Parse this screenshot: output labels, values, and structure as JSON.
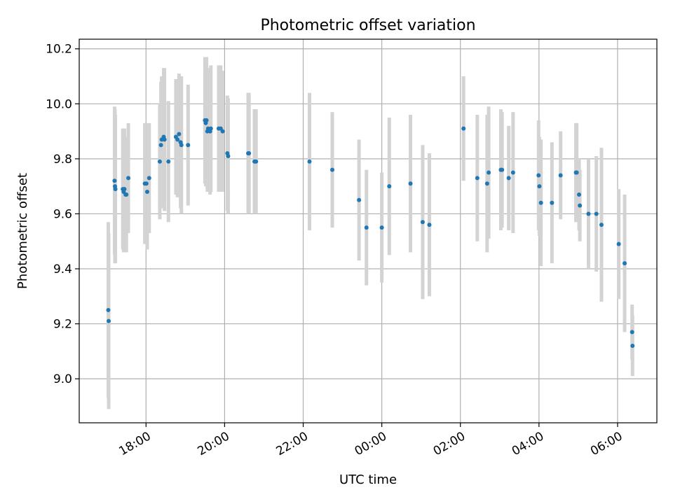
{
  "chart_data": {
    "type": "scatter",
    "title": "Photometric offset variation",
    "xlabel": "UTC time",
    "ylabel": "Photometric offset",
    "x_unit": "hours since 00:00 UTC",
    "xlim": [
      -7.7,
      7.0
    ],
    "ylim": [
      8.84,
      10.235
    ],
    "grid": true,
    "x_ticks": [
      {
        "value": -6,
        "label": "18:00"
      },
      {
        "value": -4,
        "label": "20:00"
      },
      {
        "value": -2,
        "label": "22:00"
      },
      {
        "value": 0,
        "label": "00:00"
      },
      {
        "value": 2,
        "label": "02:00"
      },
      {
        "value": 4,
        "label": "04:00"
      },
      {
        "value": 6,
        "label": "06:00"
      }
    ],
    "y_ticks": [
      {
        "value": 9.0,
        "label": "9.0"
      },
      {
        "value": 9.2,
        "label": "9.2"
      },
      {
        "value": 9.4,
        "label": "9.4"
      },
      {
        "value": 9.6,
        "label": "9.6"
      },
      {
        "value": 9.8,
        "label": "9.8"
      },
      {
        "value": 10.0,
        "label": "10.0"
      },
      {
        "value": 10.2,
        "label": "10.2"
      }
    ],
    "colors": {
      "points": "#1f77b4",
      "errorbars": "#d3d3d3",
      "grid": "#b0b0b0"
    },
    "series": [
      {
        "name": "Photometric offset",
        "x": [
          -6.96,
          -6.95,
          -6.8,
          -6.79,
          -6.78,
          -6.59,
          -6.57,
          -6.55,
          -6.52,
          -6.5,
          -6.45,
          -6.03,
          -5.99,
          -5.97,
          -5.92,
          -5.65,
          -5.62,
          -5.6,
          -5.55,
          -5.53,
          -5.43,
          -5.24,
          -5.2,
          -5.16,
          -5.12,
          -5.1,
          -4.93,
          -4.5,
          -4.48,
          -4.46,
          -4.44,
          -4.42,
          -4.37,
          -4.35,
          -4.15,
          -4.1,
          -4.05,
          -3.93,
          -3.91,
          -3.4,
          -3.38,
          -3.24,
          -3.22,
          -3.2,
          -1.84,
          -1.26,
          -0.58,
          -0.39,
          0.0,
          0.19,
          0.73,
          1.04,
          1.21,
          2.08,
          2.43,
          2.68,
          2.72,
          3.03,
          3.06,
          3.23,
          3.34,
          3.99,
          4.01,
          4.05,
          4.33,
          4.55,
          4.94,
          4.96,
          5.02,
          5.04,
          5.26,
          5.46,
          5.59,
          6.03,
          6.18,
          6.37,
          6.38
        ],
        "y": [
          9.25,
          9.21,
          9.72,
          9.7,
          9.69,
          9.69,
          9.68,
          9.69,
          9.67,
          9.67,
          9.73,
          9.71,
          9.71,
          9.68,
          9.73,
          9.79,
          9.85,
          9.87,
          9.88,
          9.87,
          9.79,
          9.88,
          9.87,
          9.89,
          9.86,
          9.85,
          9.85,
          9.94,
          9.93,
          9.94,
          9.9,
          9.91,
          9.9,
          9.91,
          9.91,
          9.91,
          9.9,
          9.82,
          9.81,
          9.82,
          9.82,
          9.79,
          9.79,
          9.79,
          9.79,
          9.76,
          9.65,
          9.55,
          9.55,
          9.7,
          9.71,
          9.57,
          9.56,
          9.91,
          9.73,
          9.71,
          9.75,
          9.76,
          9.76,
          9.73,
          9.75,
          9.74,
          9.7,
          9.64,
          9.64,
          9.74,
          9.75,
          9.75,
          9.67,
          9.63,
          9.6,
          9.6,
          9.56,
          9.49,
          9.42,
          9.17,
          9.12
        ],
        "err": [
          0.32,
          0.32,
          0.27,
          0.28,
          0.27,
          0.22,
          0.22,
          0.22,
          0.21,
          0.21,
          0.2,
          0.22,
          0.22,
          0.21,
          0.2,
          0.21,
          0.23,
          0.23,
          0.25,
          0.26,
          0.22,
          0.21,
          0.21,
          0.22,
          0.24,
          0.25,
          0.22,
          0.23,
          0.23,
          0.23,
          0.22,
          0.22,
          0.23,
          0.23,
          0.23,
          0.23,
          0.22,
          0.21,
          0.21,
          0.22,
          0.22,
          0.19,
          0.19,
          0.19,
          0.25,
          0.21,
          0.22,
          0.21,
          0.2,
          0.25,
          0.25,
          0.28,
          0.26,
          0.19,
          0.23,
          0.25,
          0.24,
          0.22,
          0.21,
          0.19,
          0.22,
          0.2,
          0.18,
          0.23,
          0.22,
          0.16,
          0.18,
          0.18,
          0.13,
          0.13,
          0.2,
          0.21,
          0.28,
          0.2,
          0.25,
          0.1,
          0.11
        ]
      }
    ]
  }
}
